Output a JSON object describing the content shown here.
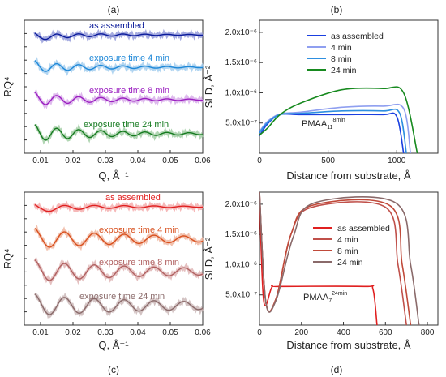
{
  "panels": {
    "a": {
      "letter": "(a)",
      "xlabel": "Q, Å⁻¹",
      "ylabel": "RQ⁴",
      "xticks": [
        "0.01",
        "0.02",
        "0.03",
        "0.04",
        "0.05",
        "0.06"
      ],
      "curves": [
        {
          "label": "as assembled",
          "color": "#0a1a9a",
          "data": "#8f96d8"
        },
        {
          "label": "exposure time 4 min",
          "color": "#1e88d8",
          "data": "#9ecbee"
        },
        {
          "label": "exposure time 8 min",
          "color": "#9b1fc0",
          "data": "#d6a8e8"
        },
        {
          "label": "exposure time 24 min",
          "color": "#157a1f",
          "data": "#9ccb9f"
        }
      ]
    },
    "b": {
      "letter": "(b)",
      "xlabel": "Distance from substrate, Å",
      "ylabel": "SLD, Å⁻²",
      "xticks": [
        "0",
        "500",
        "1000"
      ],
      "yticks": [
        "5.0x10⁻⁷",
        "1.0x10⁻⁶",
        "1.5x10⁻⁶",
        "2.0x10⁻⁶"
      ],
      "annotation": {
        "base": "PMAA",
        "sub": "11",
        "sup": "8min"
      },
      "legend": [
        {
          "label": "as assembled",
          "color": "#1a3fe0"
        },
        {
          "label": "4 min",
          "color": "#8f9ff0"
        },
        {
          "label": "8 min",
          "color": "#2e8fe0"
        },
        {
          "label": "24 min",
          "color": "#178a1f"
        }
      ]
    },
    "c": {
      "letter": "(c)",
      "xlabel": "Q, Å⁻¹",
      "ylabel": "RQ⁴",
      "xticks": [
        "0.01",
        "0.02",
        "0.03",
        "0.04",
        "0.05",
        "0.06"
      ],
      "curves": [
        {
          "label": "as assembled",
          "color": "#e02020",
          "data": "#f4a8a8"
        },
        {
          "label": "exposure time 4 min",
          "color": "#d8501e",
          "data": "#efb29a"
        },
        {
          "label": "exposure time 8 min",
          "color": "#b06060",
          "data": "#ddb0b0"
        },
        {
          "label": "exposure time 24 min",
          "color": "#8a6a6a",
          "data": "#c8b4b4"
        }
      ]
    },
    "d": {
      "letter": "(d)",
      "xlabel": "Distance from substrate, Å",
      "ylabel": "SLD, Å⁻²",
      "xticks": [
        "0",
        "200",
        "400",
        "600",
        "800"
      ],
      "yticks": [
        "5.0x10⁻⁷",
        "1.0x10⁻⁶",
        "1.5x10⁻⁶",
        "2.0x10⁻⁶"
      ],
      "annotation": {
        "base": "PMAA",
        "sub": "7",
        "sup": "24min"
      },
      "legend": [
        {
          "label": "as assembled",
          "color": "#e02020"
        },
        {
          "label": "4 min",
          "color": "#c0504a"
        },
        {
          "label": "8 min",
          "color": "#c04a3a"
        },
        {
          "label": "24 min",
          "color": "#8a6a6a"
        }
      ]
    }
  },
  "chart_data": [
    {
      "type": "line",
      "panel": "a",
      "xlabel": "Q, Å⁻¹",
      "ylabel": "RQ⁴",
      "xlim": [
        0.005,
        0.06
      ],
      "series": [
        {
          "name": "as assembled"
        },
        {
          "name": "exposure time 4 min"
        },
        {
          "name": "exposure time 8 min"
        },
        {
          "name": "exposure time 24 min"
        }
      ]
    },
    {
      "type": "line",
      "panel": "b",
      "xlabel": "Distance from substrate, Å",
      "ylabel": "SLD, Å⁻²",
      "xlim": [
        0,
        1300
      ],
      "ylim": [
        0,
        2.2e-06
      ],
      "series": [
        {
          "name": "as assembled",
          "x": [
            0,
            60,
            150,
            300,
            600,
            900,
            1000,
            1050
          ],
          "y": [
            2.9e-07,
            4.9e-07,
            6.4e-07,
            6.4e-07,
            6.4e-07,
            6.4e-07,
            6.1e-07,
            0
          ]
        },
        {
          "name": "4 min",
          "x": [
            0,
            60,
            150,
            300,
            600,
            900,
            1050,
            1100
          ],
          "y": [
            3.6e-07,
            5.3e-07,
            6.5e-07,
            6.8e-07,
            7.6e-07,
            7.8e-07,
            7.4e-07,
            0
          ]
        },
        {
          "name": "8 min",
          "x": [
            0,
            60,
            150,
            300,
            600,
            900,
            1020,
            1070
          ],
          "y": [
            3.4e-07,
            5.1e-07,
            6.4e-07,
            6.6e-07,
            7e-07,
            7e-07,
            6.7e-07,
            0
          ]
        },
        {
          "name": "24 min",
          "x": [
            0,
            60,
            150,
            300,
            600,
            900,
            1050,
            1150
          ],
          "y": [
            3e-07,
            4.2e-07,
            6.4e-07,
            8.3e-07,
            1.05e-06,
            1.07e-06,
            1e-06,
            0
          ]
        }
      ]
    },
    {
      "type": "line",
      "panel": "c",
      "xlabel": "Q, Å⁻¹",
      "ylabel": "RQ⁴",
      "xlim": [
        0.005,
        0.06
      ],
      "series": [
        {
          "name": "as assembled"
        },
        {
          "name": "exposure time 4 min"
        },
        {
          "name": "exposure time 8 min"
        },
        {
          "name": "exposure time 24 min"
        }
      ]
    },
    {
      "type": "line",
      "panel": "d",
      "xlabel": "Distance from substrate, Å",
      "ylabel": "SLD, Å⁻²",
      "xlim": [
        0,
        850
      ],
      "ylim": [
        0,
        2.2e-06
      ],
      "series": [
        {
          "name": "as assembled",
          "x": [
            0,
            20,
            60,
            100,
            500,
            540,
            560
          ],
          "y": [
            2.2e-06,
            4e-07,
            6.3e-07,
            6.4e-07,
            6.4e-07,
            6e-07,
            0
          ]
        },
        {
          "name": "4 min",
          "x": [
            0,
            30,
            80,
            150,
            250,
            600,
            660,
            700
          ],
          "y": [
            2.2e-06,
            3.8e-07,
            4.5e-07,
            1.5e-06,
            1.95e-06,
            1.95e-06,
            1e-06,
            0
          ]
        },
        {
          "name": "8 min",
          "x": [
            0,
            30,
            80,
            150,
            250,
            620,
            680,
            720
          ],
          "y": [
            2.2e-06,
            3.8e-07,
            4.5e-07,
            1.5e-06,
            1.98e-06,
            1.98e-06,
            1e-06,
            0
          ]
        },
        {
          "name": "24 min",
          "x": [
            0,
            30,
            80,
            160,
            260,
            650,
            720,
            760
          ],
          "y": [
            2.2e-06,
            3.8e-07,
            4.2e-07,
            1.45e-06,
            2.02e-06,
            2.02e-06,
            1e-06,
            0
          ]
        }
      ]
    }
  ]
}
